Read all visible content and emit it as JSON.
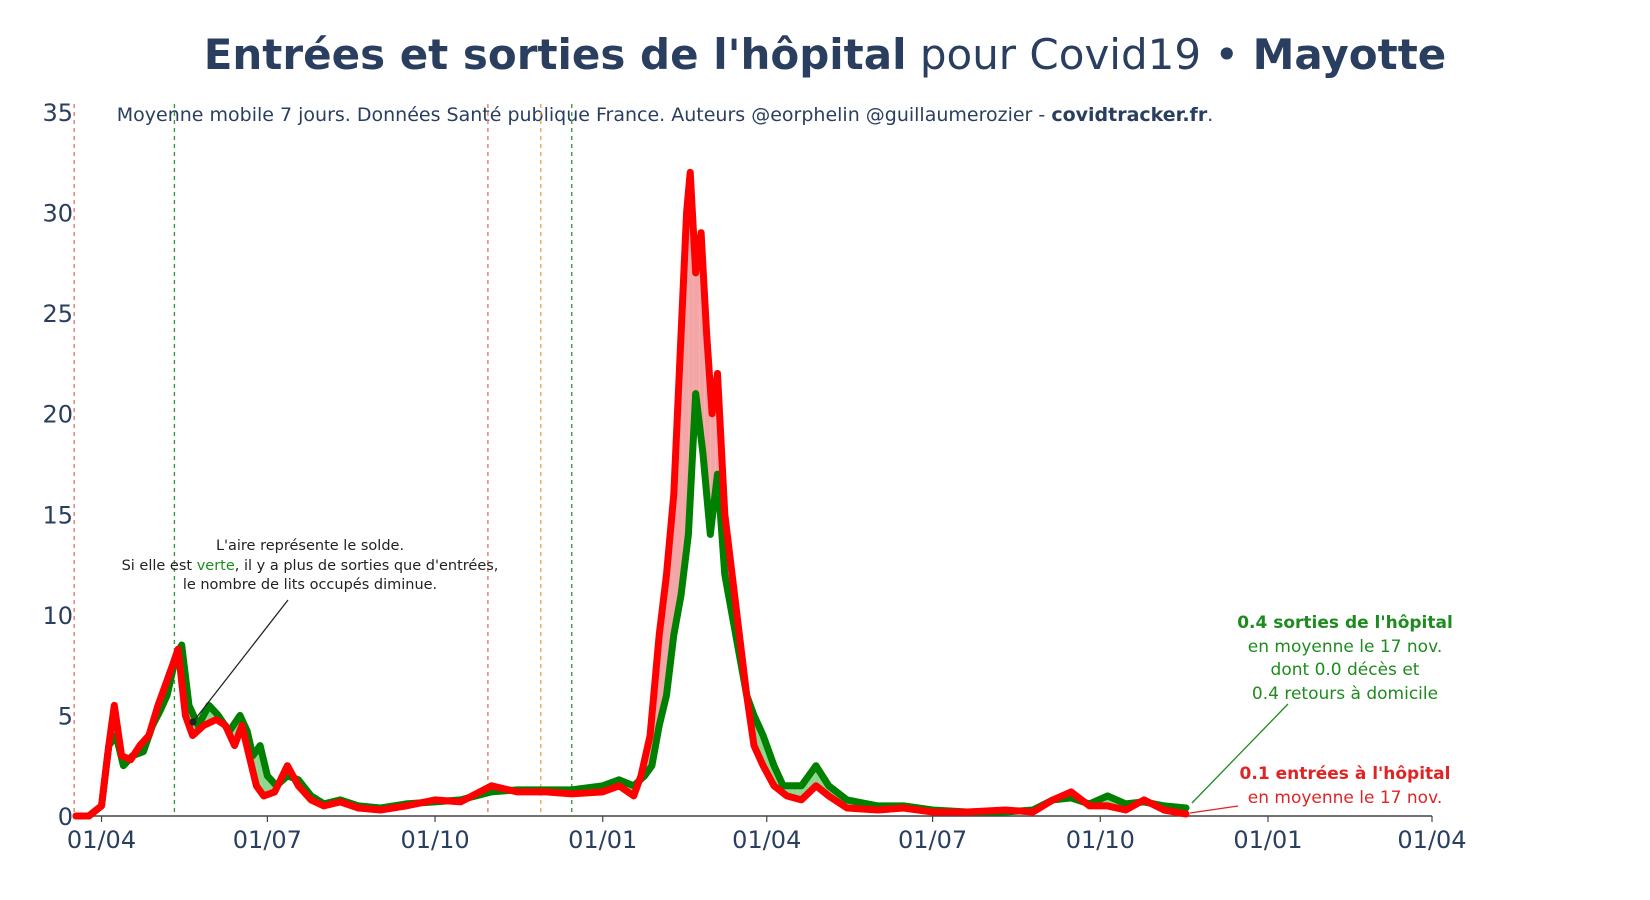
{
  "title": {
    "part1": "Entrées et sorties de l'hôpital",
    "part2": " pour Covid19 • ",
    "part3": "Mayotte"
  },
  "subtitle": {
    "text": "Moyenne mobile 7 jours. Données Santé publique France. Auteurs @eorphelin @guillaumerozier - ",
    "bold": "covidtracker.fr",
    "end": "."
  },
  "annotations": {
    "solde": {
      "line1": "L'aire représente le solde.",
      "line2_pre": "Si elle est ",
      "line2_green": "verte",
      "line2_post": ", il y a plus de sorties que d'entrées,",
      "line3": "le nombre de lits occupés diminue."
    },
    "sorties": {
      "bold": "0.4 sorties de l'hôpital",
      "line2": "en moyenne le 17 nov.",
      "line3": "dont 0.0 décès et",
      "line4": "0.4 retours à domicile"
    },
    "entrees": {
      "bold": "0.1 entrées à l'hôpital",
      "line2": "en moyenne le 17 nov."
    }
  },
  "colors": {
    "sorties": "#008000",
    "entrees": "#ff0000",
    "area_green": "#8fd68f",
    "area_red": "#f4a5a5",
    "text": "#2a3f5f"
  },
  "chart_data": {
    "type": "line",
    "x_ticks": [
      "01/04",
      "01/07",
      "01/10",
      "01/01",
      "01/04",
      "01/07",
      "01/10",
      "01/01",
      "01/04"
    ],
    "y_ticks": [
      0,
      5,
      10,
      15,
      20,
      25,
      30,
      35
    ],
    "ylim": [
      0,
      35
    ],
    "xlim": [
      "2020-03-18",
      "2022-04-01"
    ],
    "vertical_lines": [
      {
        "date": "2020-03-17",
        "color": "#e8786f"
      },
      {
        "date": "2020-05-11",
        "color": "#3a9a3a"
      },
      {
        "date": "2020-10-30",
        "color": "#e8786f"
      },
      {
        "date": "2020-11-28",
        "color": "#f5a25a"
      },
      {
        "date": "2020-12-15",
        "color": "#3a9a3a"
      }
    ],
    "series": [
      {
        "name": "sorties",
        "points": [
          [
            "2020-03-18",
            0
          ],
          [
            "2020-03-25",
            0
          ],
          [
            "2020-04-01",
            0.5
          ],
          [
            "2020-04-05",
            3.5
          ],
          [
            "2020-04-09",
            4
          ],
          [
            "2020-04-13",
            2.5
          ],
          [
            "2020-04-18",
            3
          ],
          [
            "2020-04-24",
            3.2
          ],
          [
            "2020-04-29",
            4.5
          ],
          [
            "2020-05-03",
            5.2
          ],
          [
            "2020-05-07",
            6
          ],
          [
            "2020-05-12",
            8
          ],
          [
            "2020-05-15",
            8.5
          ],
          [
            "2020-05-19",
            5.5
          ],
          [
            "2020-05-24",
            4.5
          ],
          [
            "2020-05-30",
            5.5
          ],
          [
            "2020-06-04",
            5
          ],
          [
            "2020-06-10",
            4.2
          ],
          [
            "2020-06-16",
            5
          ],
          [
            "2020-06-20",
            4.2
          ],
          [
            "2020-06-23",
            3
          ],
          [
            "2020-06-27",
            3.5
          ],
          [
            "2020-07-01",
            2
          ],
          [
            "2020-07-06",
            1.5
          ],
          [
            "2020-07-12",
            2
          ],
          [
            "2020-07-18",
            1.8
          ],
          [
            "2020-07-25",
            1
          ],
          [
            "2020-08-01",
            0.6
          ],
          [
            "2020-08-10",
            0.8
          ],
          [
            "2020-08-20",
            0.5
          ],
          [
            "2020-09-01",
            0.4
          ],
          [
            "2020-09-15",
            0.6
          ],
          [
            "2020-10-01",
            0.7
          ],
          [
            "2020-10-15",
            0.8
          ],
          [
            "2020-11-01",
            1.2
          ],
          [
            "2020-11-15",
            1.3
          ],
          [
            "2020-12-01",
            1.3
          ],
          [
            "2020-12-15",
            1.3
          ],
          [
            "2021-01-01",
            1.5
          ],
          [
            "2021-01-10",
            1.8
          ],
          [
            "2021-01-18",
            1.5
          ],
          [
            "2021-01-24",
            2
          ],
          [
            "2021-01-28",
            2.5
          ],
          [
            "2021-02-01",
            4.5
          ],
          [
            "2021-02-05",
            6
          ],
          [
            "2021-02-09",
            9
          ],
          [
            "2021-02-13",
            11
          ],
          [
            "2021-02-17",
            14
          ],
          [
            "2021-02-21",
            21
          ],
          [
            "2021-02-25",
            18
          ],
          [
            "2021-03-01",
            14
          ],
          [
            "2021-03-05",
            17
          ],
          [
            "2021-03-09",
            12
          ],
          [
            "2021-03-13",
            10
          ],
          [
            "2021-03-17",
            8
          ],
          [
            "2021-03-21",
            6
          ],
          [
            "2021-03-25",
            5
          ],
          [
            "2021-03-30",
            4
          ],
          [
            "2021-04-05",
            2.5
          ],
          [
            "2021-04-10",
            1.5
          ],
          [
            "2021-04-20",
            1.5
          ],
          [
            "2021-04-28",
            2.5
          ],
          [
            "2021-05-05",
            1.5
          ],
          [
            "2021-05-15",
            0.8
          ],
          [
            "2021-06-01",
            0.5
          ],
          [
            "2021-06-15",
            0.5
          ],
          [
            "2021-07-01",
            0.3
          ],
          [
            "2021-07-20",
            0.2
          ],
          [
            "2021-08-10",
            0.2
          ],
          [
            "2021-08-25",
            0.3
          ],
          [
            "2021-09-05",
            0.8
          ],
          [
            "2021-09-15",
            0.9
          ],
          [
            "2021-09-25",
            0.6
          ],
          [
            "2021-10-05",
            1
          ],
          [
            "2021-10-15",
            0.6
          ],
          [
            "2021-10-25",
            0.7
          ],
          [
            "2021-11-05",
            0.5
          ],
          [
            "2021-11-17",
            0.4
          ]
        ]
      },
      {
        "name": "entrees",
        "points": [
          [
            "2020-03-18",
            0
          ],
          [
            "2020-03-25",
            0
          ],
          [
            "2020-04-01",
            0.5
          ],
          [
            "2020-04-05",
            3.5
          ],
          [
            "2020-04-08",
            5.5
          ],
          [
            "2020-04-12",
            3
          ],
          [
            "2020-04-17",
            2.8
          ],
          [
            "2020-04-22",
            3.5
          ],
          [
            "2020-04-27",
            4
          ],
          [
            "2020-05-02",
            5.5
          ],
          [
            "2020-05-06",
            6.5
          ],
          [
            "2020-05-10",
            7.5
          ],
          [
            "2020-05-13",
            8.3
          ],
          [
            "2020-05-17",
            5
          ],
          [
            "2020-05-21",
            4
          ],
          [
            "2020-05-27",
            4.5
          ],
          [
            "2020-06-03",
            4.8
          ],
          [
            "2020-06-08",
            4.5
          ],
          [
            "2020-06-13",
            3.5
          ],
          [
            "2020-06-17",
            4.5
          ],
          [
            "2020-06-21",
            3
          ],
          [
            "2020-06-25",
            1.5
          ],
          [
            "2020-06-29",
            1
          ],
          [
            "2020-07-05",
            1.2
          ],
          [
            "2020-07-12",
            2.5
          ],
          [
            "2020-07-18",
            1.5
          ],
          [
            "2020-07-25",
            0.8
          ],
          [
            "2020-08-01",
            0.5
          ],
          [
            "2020-08-10",
            0.7
          ],
          [
            "2020-08-20",
            0.4
          ],
          [
            "2020-09-01",
            0.3
          ],
          [
            "2020-09-15",
            0.5
          ],
          [
            "2020-10-01",
            0.8
          ],
          [
            "2020-10-15",
            0.7
          ],
          [
            "2020-11-01",
            1.5
          ],
          [
            "2020-11-15",
            1.2
          ],
          [
            "2020-12-01",
            1.2
          ],
          [
            "2020-12-15",
            1.1
          ],
          [
            "2021-01-01",
            1.2
          ],
          [
            "2021-01-10",
            1.5
          ],
          [
            "2021-01-18",
            1
          ],
          [
            "2021-01-22",
            2
          ],
          [
            "2021-01-27",
            4
          ],
          [
            "2021-02-01",
            9
          ],
          [
            "2021-02-05",
            12
          ],
          [
            "2021-02-09",
            16
          ],
          [
            "2021-02-13",
            24
          ],
          [
            "2021-02-16",
            30
          ],
          [
            "2021-02-18",
            32
          ],
          [
            "2021-02-21",
            27
          ],
          [
            "2021-02-24",
            29
          ],
          [
            "2021-02-27",
            24
          ],
          [
            "2021-03-02",
            20
          ],
          [
            "2021-03-05",
            22
          ],
          [
            "2021-03-09",
            15
          ],
          [
            "2021-03-13",
            12
          ],
          [
            "2021-03-17",
            9
          ],
          [
            "2021-03-21",
            6
          ],
          [
            "2021-03-25",
            3.5
          ],
          [
            "2021-03-30",
            2.5
          ],
          [
            "2021-04-05",
            1.5
          ],
          [
            "2021-04-12",
            1
          ],
          [
            "2021-04-20",
            0.8
          ],
          [
            "2021-04-28",
            1.5
          ],
          [
            "2021-05-05",
            1
          ],
          [
            "2021-05-15",
            0.4
          ],
          [
            "2021-06-01",
            0.3
          ],
          [
            "2021-06-15",
            0.4
          ],
          [
            "2021-07-01",
            0.2
          ],
          [
            "2021-07-20",
            0.2
          ],
          [
            "2021-08-10",
            0.3
          ],
          [
            "2021-08-25",
            0.2
          ],
          [
            "2021-09-05",
            0.8
          ],
          [
            "2021-09-15",
            1.2
          ],
          [
            "2021-09-25",
            0.5
          ],
          [
            "2021-10-05",
            0.5
          ],
          [
            "2021-10-15",
            0.3
          ],
          [
            "2021-10-25",
            0.8
          ],
          [
            "2021-11-05",
            0.3
          ],
          [
            "2021-11-17",
            0.1
          ]
        ]
      }
    ]
  }
}
